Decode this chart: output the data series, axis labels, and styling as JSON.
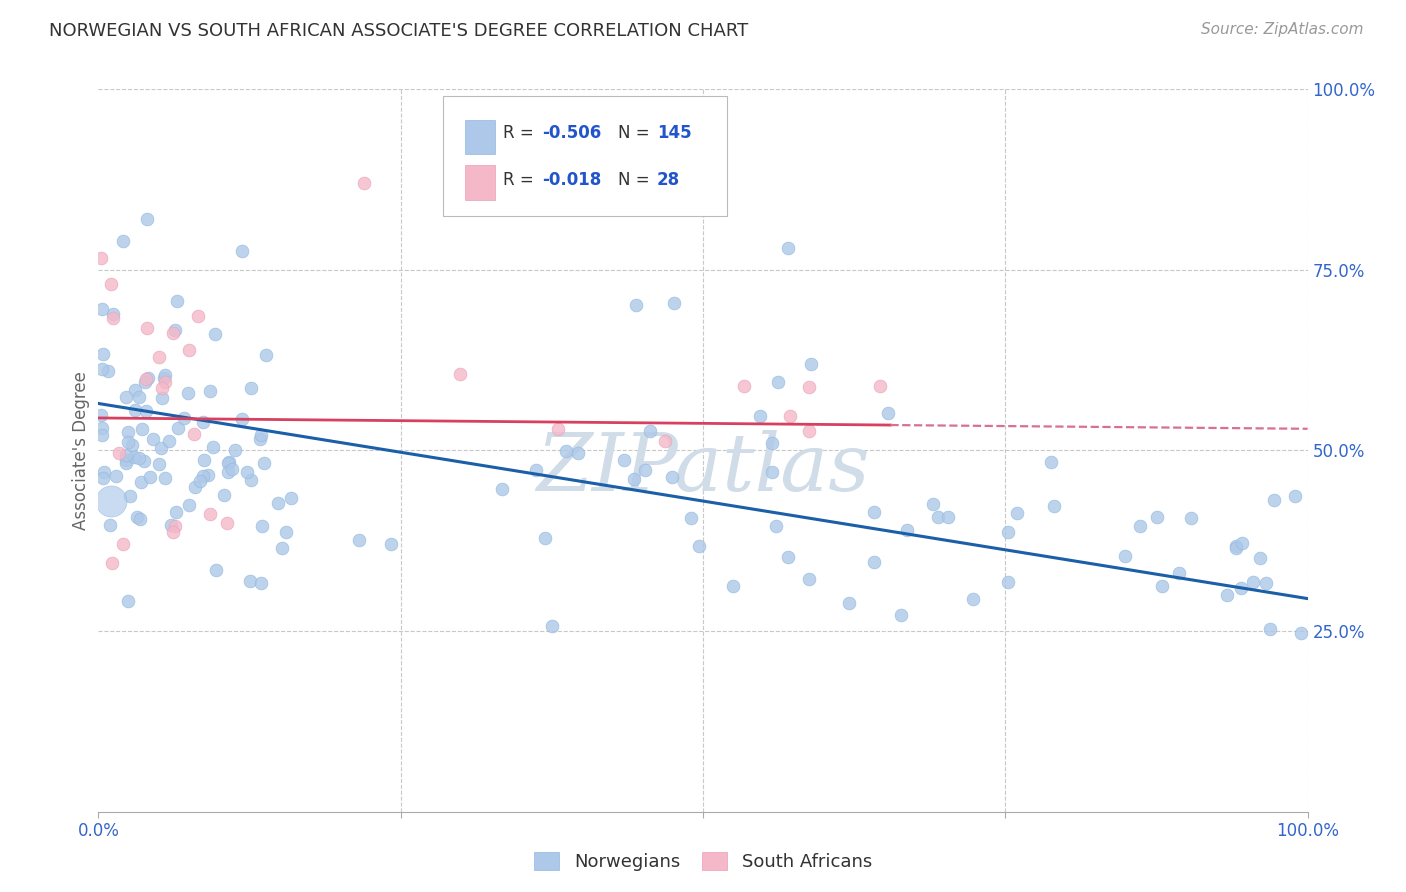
{
  "title": "NORWEGIAN VS SOUTH AFRICAN ASSOCIATE'S DEGREE CORRELATION CHART",
  "source": "Source: ZipAtlas.com",
  "ylabel_label": "Associate's Degree",
  "x_tick_labels": [
    "0.0%",
    "",
    "",
    "",
    "100.0%"
  ],
  "legend_labels": [
    "Norwegians",
    "South Africans"
  ],
  "r_norwegian": -0.506,
  "n_norwegian": 145,
  "r_south_african": -0.018,
  "n_south_african": 28,
  "blue_color": "#adc8e8",
  "blue_edge_color": "#90b8e0",
  "blue_line_color": "#1a5fa8",
  "pink_color": "#f4b8c8",
  "pink_edge_color": "#e8a0b8",
  "pink_line_color": "#d84060",
  "pink_dash_color": "#d87090",
  "background_color": "#ffffff",
  "grid_color": "#c8c8c8",
  "title_color": "#333333",
  "source_color": "#999999",
  "tick_color": "#3366cc",
  "legend_r_color": "#2255cc",
  "watermark": "ZIPatlas",
  "watermark_color": "#d0dce8",
  "seed": 7
}
